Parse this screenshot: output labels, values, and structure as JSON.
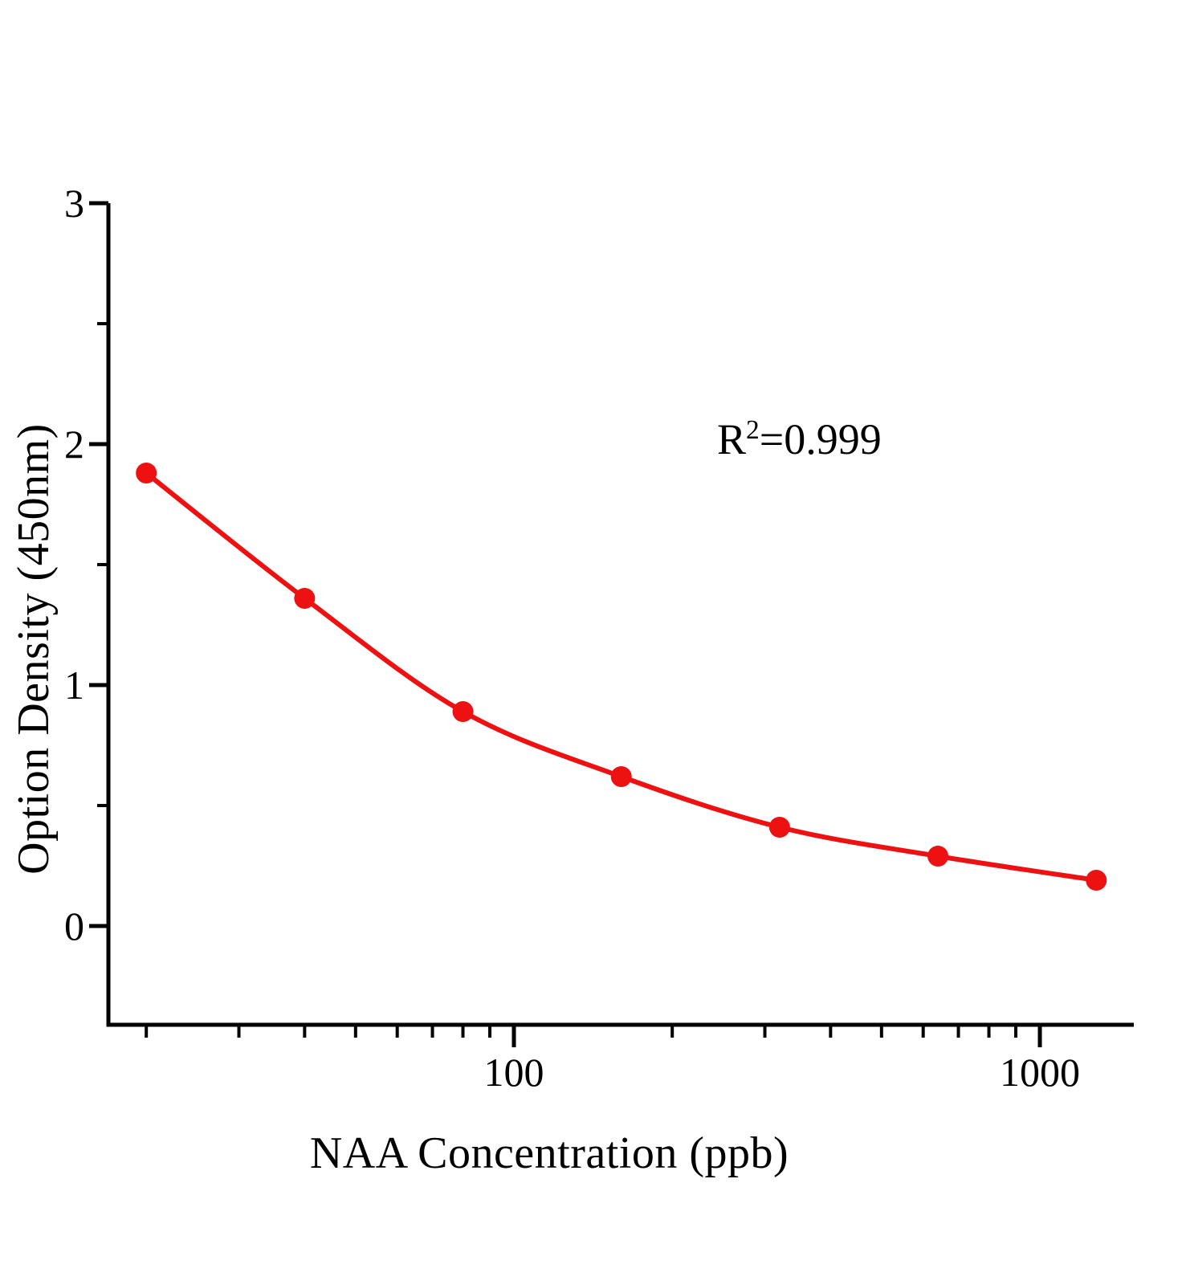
{
  "figure": {
    "background": "#ffffff"
  },
  "chart_data": {
    "type": "line",
    "title": "",
    "x": [
      20,
      40,
      80,
      160,
      320,
      640,
      1280
    ],
    "y": [
      1.88,
      1.36,
      0.89,
      0.62,
      0.41,
      0.29,
      0.19
    ],
    "marker": "filled-circle",
    "xlabel": "NAA Concentration（ppb）",
    "ylabel": "Option Density（450nm）",
    "x_scale": "log",
    "y_scale": "linear",
    "xlim": [
      17,
      1500
    ],
    "ylim": [
      -0.41,
      3
    ],
    "x_major_ticks": {
      "values": [
        100,
        1000
      ],
      "labels": [
        "100",
        "1000"
      ]
    },
    "x_minor_ticks": [
      20,
      30,
      40,
      50,
      60,
      70,
      80,
      90,
      200,
      300,
      400,
      500,
      600,
      700,
      800,
      900
    ],
    "y_major_ticks": {
      "values": [
        0,
        1,
        2,
        3
      ],
      "labels": [
        "0",
        "1",
        "2",
        "3"
      ]
    },
    "y_minor_ticks": [
      0.5,
      1.5,
      2.5
    ],
    "grid": false,
    "legend": false,
    "annotation": {
      "full": "R²=0.999",
      "base": "R",
      "exponent": "2",
      "rest": "=0.999"
    },
    "colors": {
      "curve": "#ee1111",
      "marker": "#ee1111",
      "axis": "#000000",
      "text": "#000000"
    }
  }
}
